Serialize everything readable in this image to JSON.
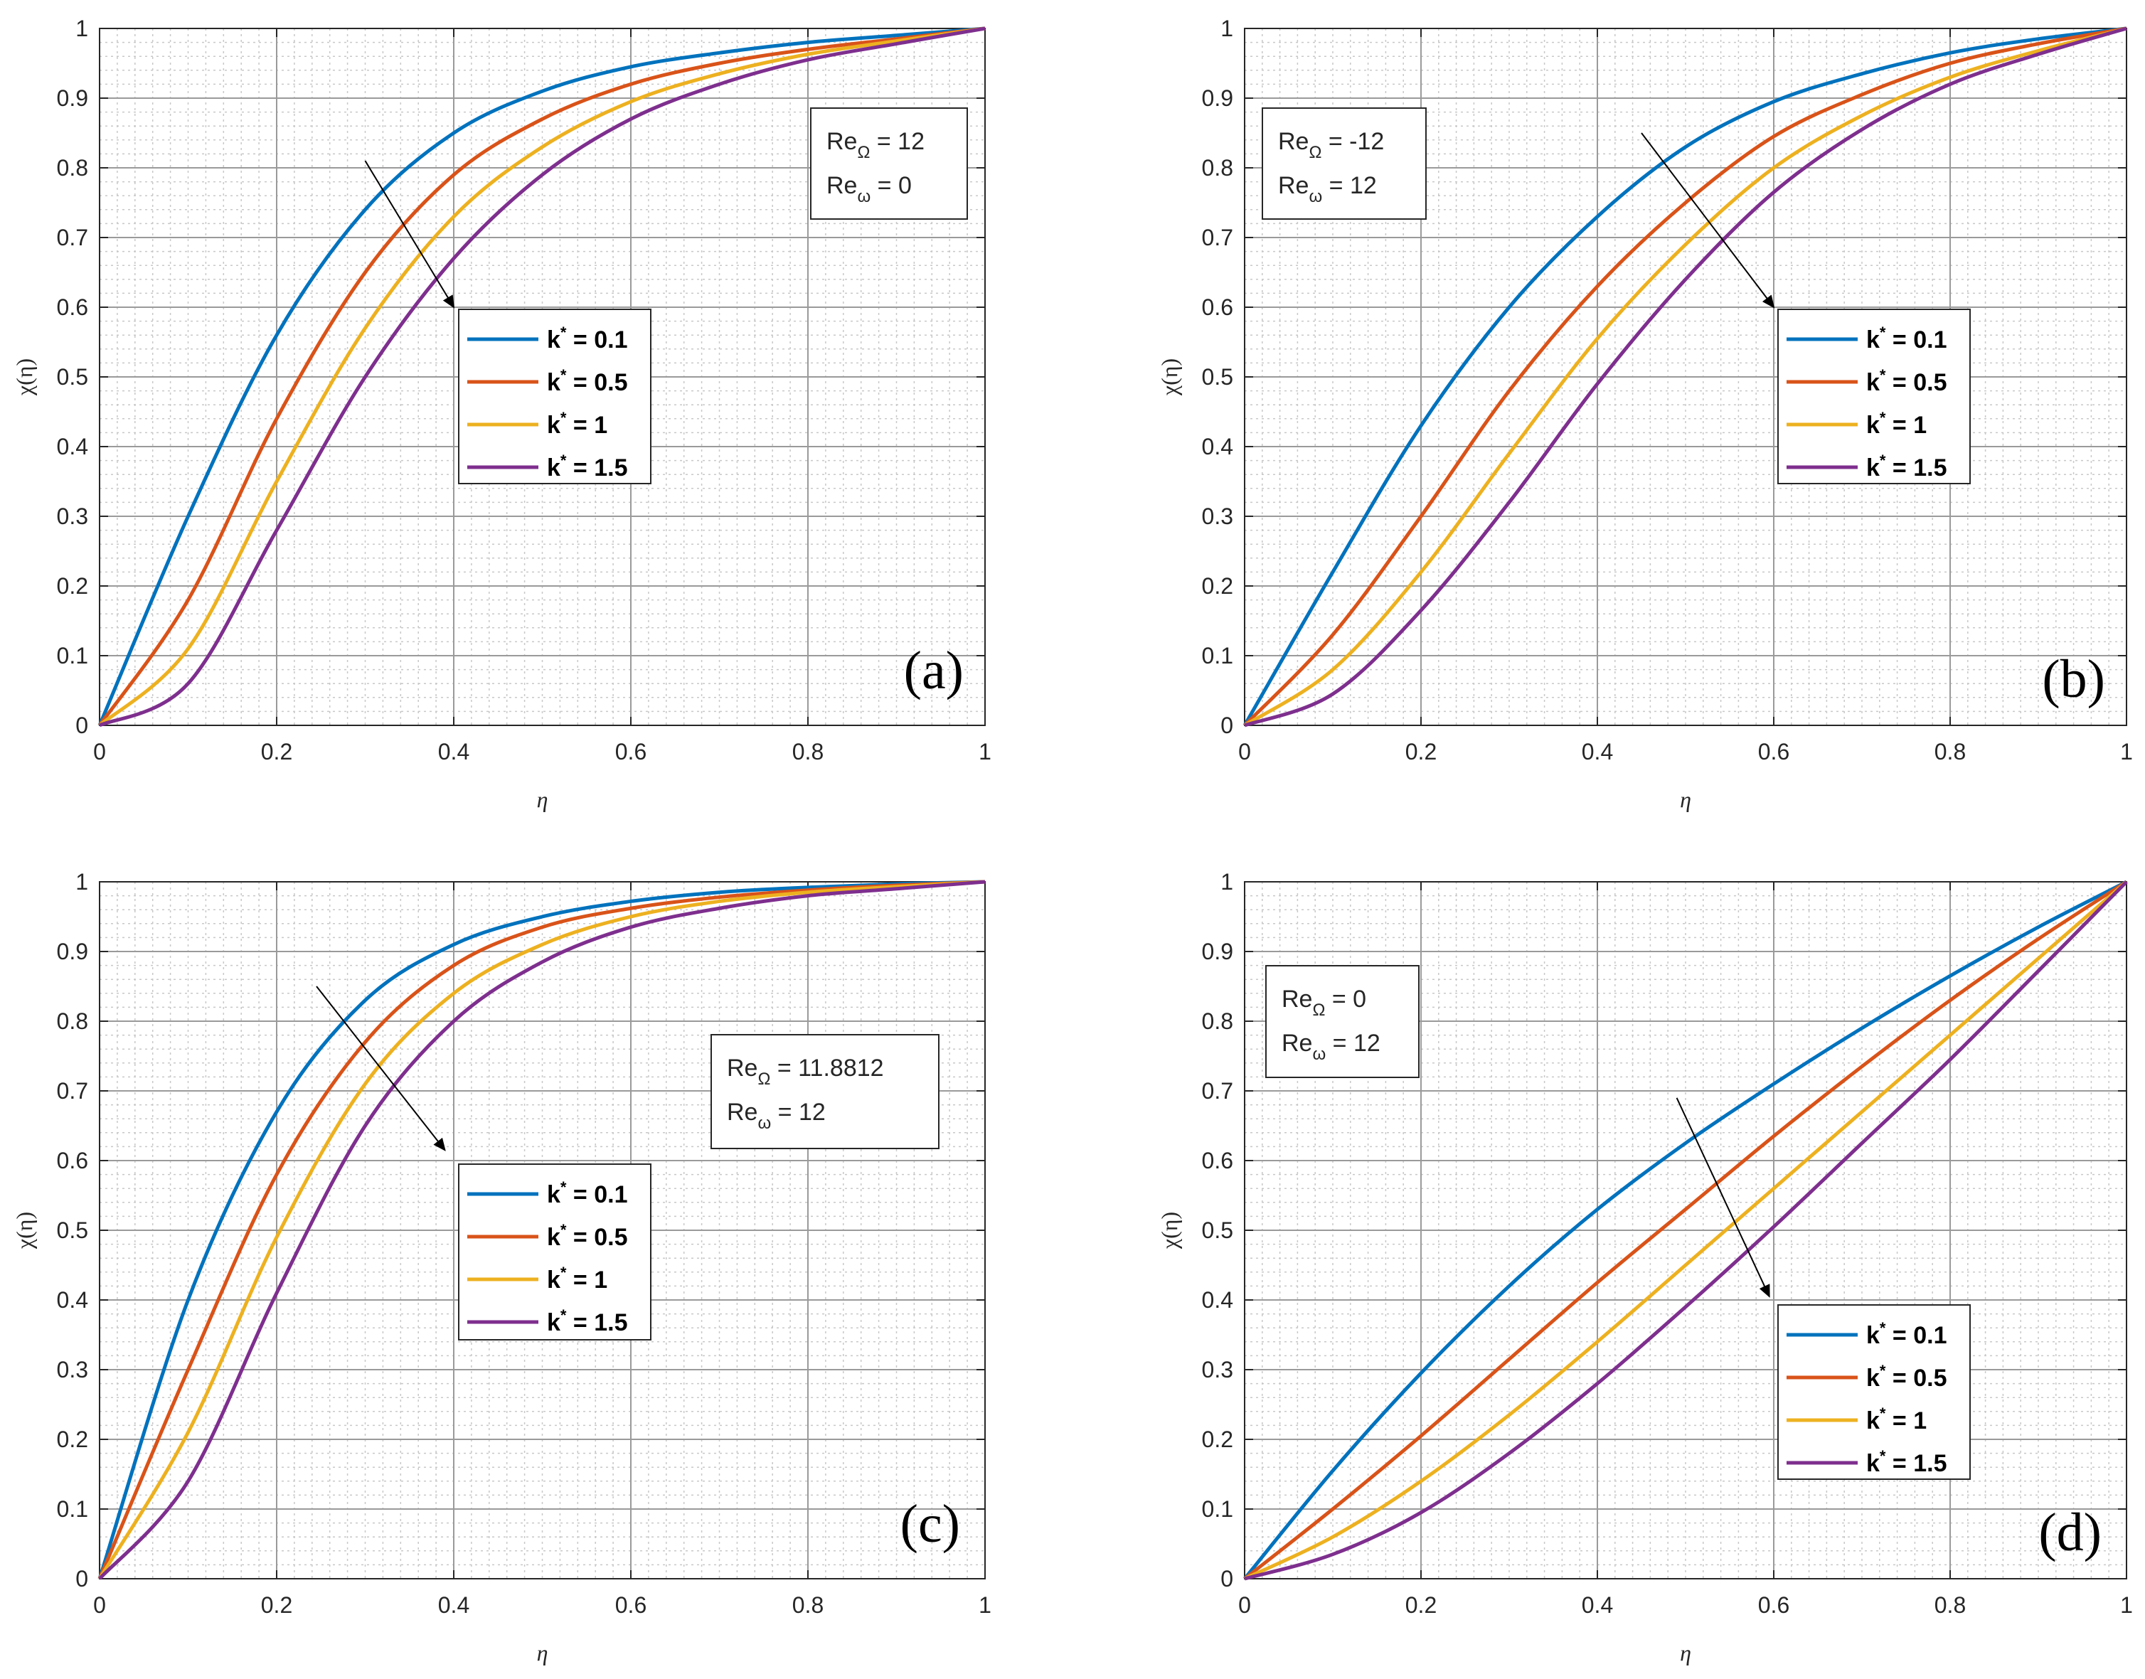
{
  "figure": {
    "background": "#ffffff"
  },
  "chart_data": [
    {
      "type": "line",
      "panel_label": "(a)",
      "xlabel": "η",
      "ylabel": "χ(η)",
      "xlim": [
        0,
        1
      ],
      "ylim": [
        0,
        1
      ],
      "xticks": [
        "0",
        "0.2",
        "0.4",
        "0.6",
        "0.8",
        "1"
      ],
      "yticks": [
        "0",
        "0.1",
        "0.2",
        "0.3",
        "0.4",
        "0.5",
        "0.6",
        "0.7",
        "0.8",
        "0.9",
        "1"
      ],
      "grid": true,
      "annotation": {
        "lines": [
          {
            "base": "Re",
            "sub": "Ω",
            "rest": " = 12"
          },
          {
            "base": "Re",
            "sub": "ω",
            "rest": " = 0"
          }
        ],
        "position": "top-right"
      },
      "legend_position": "center",
      "arrow": {
        "from": [
          0.3,
          0.81
        ],
        "to": [
          0.4,
          0.6
        ]
      },
      "x": [
        0,
        0.1,
        0.2,
        0.3,
        0.4,
        0.5,
        0.6,
        0.7,
        0.8,
        0.9,
        1.0
      ],
      "series": [
        {
          "name": "k* = 0.1",
          "label_base": "k",
          "label_sup": "*",
          "label_rest": " = 0.1",
          "color": "#0072BD",
          "values": [
            0,
            0.3,
            0.56,
            0.74,
            0.85,
            0.91,
            0.945,
            0.965,
            0.98,
            0.99,
            1
          ]
        },
        {
          "name": "k* = 0.5",
          "label_base": "k",
          "label_sup": "*",
          "label_rest": " = 0.5",
          "color": "#D95319",
          "values": [
            0,
            0.18,
            0.44,
            0.65,
            0.79,
            0.87,
            0.92,
            0.95,
            0.97,
            0.985,
            1
          ]
        },
        {
          "name": "k* = 1",
          "label_base": "k",
          "label_sup": "*",
          "label_rest": " = 1",
          "color": "#EDB120",
          "values": [
            0,
            0.11,
            0.35,
            0.57,
            0.73,
            0.83,
            0.895,
            0.935,
            0.963,
            0.982,
            1
          ]
        },
        {
          "name": "k* = 1.5",
          "label_base": "k",
          "label_sup": "*",
          "label_rest": " = 1.5",
          "color": "#7E2F8E",
          "values": [
            0,
            0.06,
            0.28,
            0.5,
            0.67,
            0.79,
            0.87,
            0.92,
            0.955,
            0.978,
            1
          ]
        }
      ]
    },
    {
      "type": "line",
      "panel_label": "(b)",
      "xlabel": "η",
      "ylabel": "χ(η)",
      "xlim": [
        0,
        1
      ],
      "ylim": [
        0,
        1
      ],
      "xticks": [
        "0",
        "0.2",
        "0.4",
        "0.6",
        "0.8",
        "1"
      ],
      "yticks": [
        "0",
        "0.1",
        "0.2",
        "0.3",
        "0.4",
        "0.5",
        "0.6",
        "0.7",
        "0.8",
        "0.9",
        "1"
      ],
      "grid": true,
      "annotation": {
        "lines": [
          {
            "base": "Re",
            "sub": "Ω",
            "rest": " = -12"
          },
          {
            "base": "Re",
            "sub": "ω",
            "rest": " = 12"
          }
        ],
        "position": "top-left"
      },
      "legend_position": "center-right",
      "arrow": {
        "from": [
          0.45,
          0.85
        ],
        "to": [
          0.6,
          0.6
        ]
      },
      "x": [
        0,
        0.1,
        0.2,
        0.3,
        0.4,
        0.5,
        0.6,
        0.7,
        0.8,
        0.9,
        1.0
      ],
      "series": [
        {
          "name": "k* = 0.1",
          "label_base": "k",
          "label_sup": "*",
          "label_rest": " = 0.1",
          "color": "#0072BD",
          "values": [
            0,
            0.22,
            0.43,
            0.6,
            0.73,
            0.83,
            0.895,
            0.935,
            0.965,
            0.985,
            1
          ]
        },
        {
          "name": "k* = 0.5",
          "label_base": "k",
          "label_sup": "*",
          "label_rest": " = 0.5",
          "color": "#D95319",
          "values": [
            0,
            0.13,
            0.3,
            0.48,
            0.63,
            0.75,
            0.845,
            0.905,
            0.95,
            0.978,
            1
          ]
        },
        {
          "name": "k* = 1",
          "label_base": "k",
          "label_sup": "*",
          "label_rest": " = 1",
          "color": "#EDB120",
          "values": [
            0,
            0.08,
            0.22,
            0.39,
            0.555,
            0.69,
            0.8,
            0.875,
            0.93,
            0.968,
            1
          ]
        },
        {
          "name": "k* = 1.5",
          "label_base": "k",
          "label_sup": "*",
          "label_rest": " = 1.5",
          "color": "#7E2F8E",
          "values": [
            0,
            0.045,
            0.165,
            0.32,
            0.49,
            0.64,
            0.765,
            0.855,
            0.92,
            0.963,
            1
          ]
        }
      ]
    },
    {
      "type": "line",
      "panel_label": "(c)",
      "xlabel": "η",
      "ylabel": "χ(η)",
      "xlim": [
        0,
        1
      ],
      "ylim": [
        0,
        1
      ],
      "xticks": [
        "0",
        "0.2",
        "0.4",
        "0.6",
        "0.8",
        "1"
      ],
      "yticks": [
        "0",
        "0.1",
        "0.2",
        "0.3",
        "0.4",
        "0.5",
        "0.6",
        "0.7",
        "0.8",
        "0.9",
        "1"
      ],
      "grid": true,
      "annotation": {
        "lines": [
          {
            "base": "Re",
            "sub": "Ω",
            "rest": " = 11.8812"
          },
          {
            "base": "Re",
            "sub": "ω",
            "rest": " = 12"
          }
        ],
        "position": "center-right"
      },
      "legend_position": "center",
      "arrow": {
        "from": [
          0.245,
          0.85
        ],
        "to": [
          0.39,
          0.615
        ]
      },
      "x": [
        0,
        0.1,
        0.2,
        0.3,
        0.4,
        0.5,
        0.6,
        0.7,
        0.8,
        0.9,
        1.0
      ],
      "series": [
        {
          "name": "k* = 0.1",
          "label_base": "k",
          "label_sup": "*",
          "label_rest": " = 0.1",
          "color": "#0072BD",
          "values": [
            0,
            0.4,
            0.67,
            0.83,
            0.91,
            0.95,
            0.972,
            0.985,
            0.992,
            0.997,
            1
          ]
        },
        {
          "name": "k* = 0.5",
          "label_base": "k",
          "label_sup": "*",
          "label_rest": " = 0.5",
          "color": "#D95319",
          "values": [
            0,
            0.3,
            0.58,
            0.77,
            0.88,
            0.935,
            0.962,
            0.978,
            0.988,
            0.995,
            1
          ]
        },
        {
          "name": "k* = 1",
          "label_base": "k",
          "label_sup": "*",
          "label_rest": " = 1",
          "color": "#EDB120",
          "values": [
            0,
            0.21,
            0.49,
            0.71,
            0.84,
            0.91,
            0.95,
            0.972,
            0.985,
            0.993,
            1
          ]
        },
        {
          "name": "k* = 1.5",
          "label_base": "k",
          "label_sup": "*",
          "label_rest": " = 1.5",
          "color": "#7E2F8E",
          "values": [
            0,
            0.14,
            0.41,
            0.65,
            0.8,
            0.885,
            0.935,
            0.962,
            0.98,
            0.99,
            1
          ]
        }
      ]
    },
    {
      "type": "line",
      "panel_label": "(d)",
      "xlabel": "η",
      "ylabel": "χ(η)",
      "xlim": [
        0,
        1
      ],
      "ylim": [
        0,
        1
      ],
      "xticks": [
        "0",
        "0.2",
        "0.4",
        "0.6",
        "0.8",
        "1"
      ],
      "yticks": [
        "0",
        "0.1",
        "0.2",
        "0.3",
        "0.4",
        "0.5",
        "0.6",
        "0.7",
        "0.8",
        "0.9",
        "1"
      ],
      "grid": true,
      "annotation": {
        "lines": [
          {
            "base": "Re",
            "sub": "Ω",
            "rest": " = 0"
          },
          {
            "base": "Re",
            "sub": "ω",
            "rest": " = 12"
          }
        ],
        "position": "top-left"
      },
      "legend_position": "bottom-right",
      "arrow": {
        "from": [
          0.49,
          0.69
        ],
        "to": [
          0.595,
          0.405
        ]
      },
      "x": [
        0,
        0.1,
        0.2,
        0.3,
        0.4,
        0.5,
        0.6,
        0.7,
        0.8,
        0.9,
        1.0
      ],
      "series": [
        {
          "name": "k* = 0.1",
          "label_base": "k",
          "label_sup": "*",
          "label_rest": " = 0.1",
          "color": "#0072BD",
          "values": [
            0,
            0.155,
            0.295,
            0.42,
            0.53,
            0.625,
            0.71,
            0.79,
            0.865,
            0.935,
            1
          ]
        },
        {
          "name": "k* = 0.5",
          "label_base": "k",
          "label_sup": "*",
          "label_rest": " = 0.5",
          "color": "#D95319",
          "values": [
            0,
            0.1,
            0.205,
            0.315,
            0.425,
            0.53,
            0.635,
            0.735,
            0.83,
            0.918,
            1
          ]
        },
        {
          "name": "k* = 1",
          "label_base": "k",
          "label_sup": "*",
          "label_rest": " = 1",
          "color": "#EDB120",
          "values": [
            0,
            0.06,
            0.14,
            0.235,
            0.34,
            0.45,
            0.56,
            0.67,
            0.78,
            0.89,
            1
          ]
        },
        {
          "name": "k* = 1.5",
          "label_base": "k",
          "label_sup": "*",
          "label_rest": " = 1.5",
          "color": "#7E2F8E",
          "values": [
            0,
            0.035,
            0.095,
            0.18,
            0.28,
            0.39,
            0.505,
            0.625,
            0.745,
            0.872,
            1
          ]
        }
      ]
    }
  ]
}
